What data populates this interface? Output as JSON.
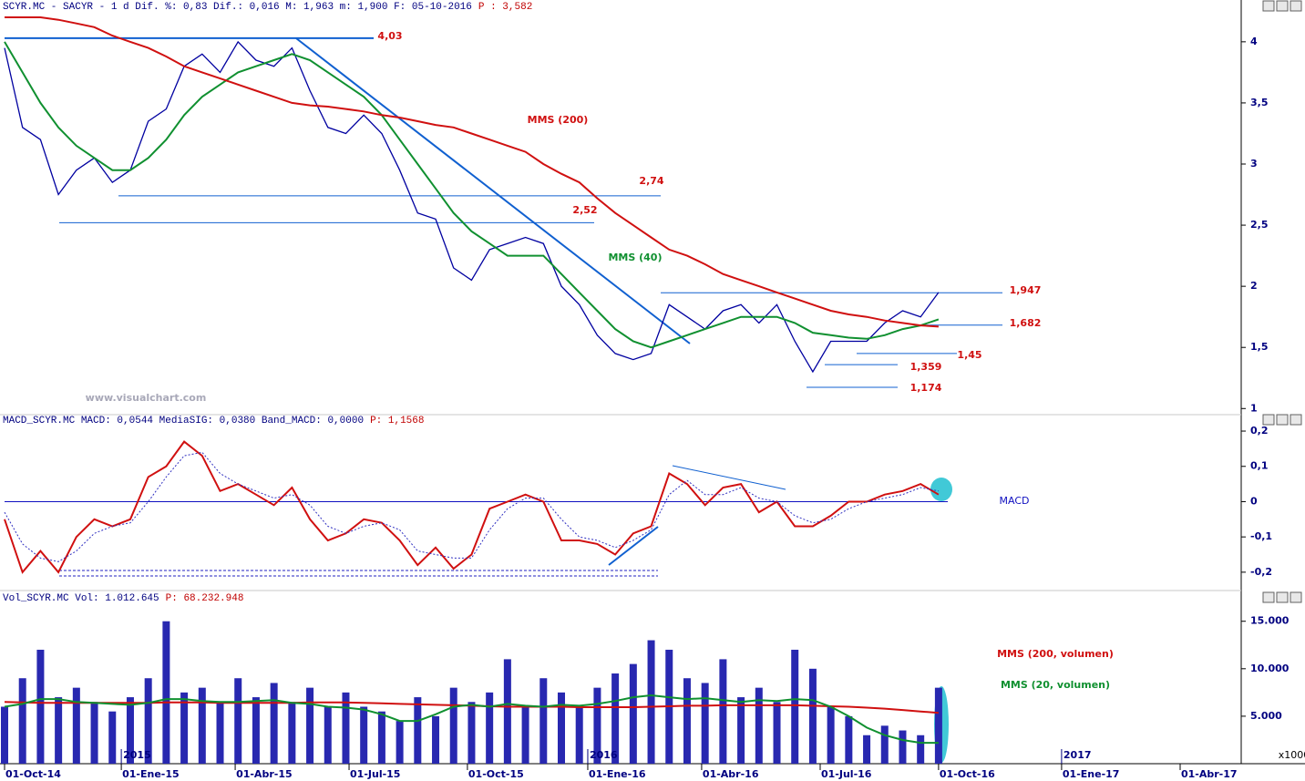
{
  "chart_data": [
    {
      "type": "line",
      "header": "SCYR.MC - SACYR -  1 d Dif. %: 0,83 Dif.: 0,016 M: 1,963 m: 1,900 F: 05-10-2016",
      "header_value": "P : 3,582",
      "watermark": "www.visualchart.com",
      "annotations": [
        "MMS (200)",
        "MMS (40)"
      ],
      "ylim": [
        0.95,
        4.23
      ],
      "yticks": [
        1,
        {
          "value": 1.5,
          "label": "1,5"
        },
        2,
        {
          "value": 2.5,
          "label": "2,5"
        },
        3,
        {
          "value": 3.5,
          "label": "3,5"
        },
        4
      ],
      "levels": [
        {
          "value": 4.03,
          "label": "4,03"
        },
        {
          "value": 2.74,
          "label": "2,74"
        },
        {
          "value": 2.52,
          "label": "2,52"
        },
        {
          "value": 1.947,
          "label": "1,947"
        },
        {
          "value": 1.682,
          "label": "1,682"
        },
        {
          "value": 1.45,
          "label": "1,45"
        },
        {
          "value": 1.359,
          "label": "1,359"
        },
        {
          "value": 1.174,
          "label": "1,174"
        }
      ],
      "series": [
        {
          "name": "SCYR.MC",
          "color": "#0000a0",
          "values": [
            3.95,
            3.3,
            3.2,
            2.75,
            2.95,
            3.05,
            2.85,
            2.95,
            3.35,
            3.45,
            3.8,
            3.9,
            3.75,
            4.0,
            3.85,
            3.8,
            3.95,
            3.6,
            3.3,
            3.25,
            3.4,
            3.25,
            2.95,
            2.6,
            2.55,
            2.15,
            2.05,
            2.3,
            2.35,
            2.4,
            2.35,
            2.0,
            1.85,
            1.6,
            1.45,
            1.4,
            1.45,
            1.85,
            1.75,
            1.65,
            1.8,
            1.85,
            1.7,
            1.85,
            1.55,
            1.3,
            1.55,
            1.55,
            1.55,
            1.7,
            1.8,
            1.75,
            1.95
          ]
        },
        {
          "name": "MMS (40)",
          "color": "#109030",
          "values": [
            4.0,
            3.75,
            3.5,
            3.3,
            3.15,
            3.05,
            2.95,
            2.95,
            3.05,
            3.2,
            3.4,
            3.55,
            3.65,
            3.75,
            3.8,
            3.85,
            3.9,
            3.85,
            3.75,
            3.65,
            3.55,
            3.4,
            3.2,
            3.0,
            2.8,
            2.6,
            2.45,
            2.35,
            2.25,
            2.25,
            2.25,
            2.1,
            1.95,
            1.8,
            1.65,
            1.55,
            1.5,
            1.55,
            1.6,
            1.65,
            1.7,
            1.75,
            1.75,
            1.75,
            1.7,
            1.62,
            1.6,
            1.58,
            1.57,
            1.6,
            1.65,
            1.68,
            1.73
          ]
        },
        {
          "name": "MMS (200)",
          "color": "#d01010",
          "values": [
            4.2,
            4.2,
            4.2,
            4.18,
            4.15,
            4.12,
            4.05,
            4.0,
            3.95,
            3.88,
            3.8,
            3.75,
            3.7,
            3.65,
            3.6,
            3.55,
            3.5,
            3.48,
            3.47,
            3.45,
            3.43,
            3.4,
            3.38,
            3.35,
            3.32,
            3.3,
            3.25,
            3.2,
            3.15,
            3.1,
            3.0,
            2.92,
            2.85,
            2.72,
            2.6,
            2.5,
            2.4,
            2.3,
            2.25,
            2.18,
            2.1,
            2.05,
            2.0,
            1.95,
            1.9,
            1.85,
            1.8,
            1.77,
            1.75,
            1.72,
            1.7,
            1.68,
            1.67
          ]
        }
      ]
    },
    {
      "type": "line",
      "header": "MACD_SCYR.MC MACD: 0,0544 MediaSIG: 0,0380 Band_MACD: 0,0000",
      "header_value": "P: 1,1568",
      "annotations": [
        "MACD"
      ],
      "ylim": [
        -0.252,
        0.213
      ],
      "yticks": [
        {
          "value": -0.2,
          "label": "-0,2"
        },
        {
          "value": -0.1,
          "label": "-0,1"
        },
        0,
        {
          "value": 0.1,
          "label": "0,1"
        },
        {
          "value": 0.2,
          "label": "0,2"
        }
      ],
      "series": [
        {
          "name": "MACD",
          "color": "#d01010",
          "values": [
            -0.05,
            -0.2,
            -0.14,
            -0.2,
            -0.1,
            -0.05,
            -0.07,
            -0.05,
            0.07,
            0.1,
            0.17,
            0.13,
            0.03,
            0.05,
            0.02,
            -0.01,
            0.04,
            -0.05,
            -0.11,
            -0.09,
            -0.05,
            -0.06,
            -0.11,
            -0.18,
            -0.13,
            -0.19,
            -0.15,
            -0.02,
            0.0,
            0.02,
            0.0,
            -0.11,
            -0.11,
            -0.12,
            -0.15,
            -0.09,
            -0.07,
            0.08,
            0.05,
            -0.01,
            0.04,
            0.05,
            -0.03,
            0.0,
            -0.07,
            -0.07,
            -0.04,
            0.0,
            0.0,
            0.02,
            0.03,
            0.05,
            0.02
          ]
        },
        {
          "name": "MediaSIG",
          "color": "#3030c0",
          "values": [
            -0.03,
            -0.12,
            -0.16,
            -0.17,
            -0.14,
            -0.09,
            -0.07,
            -0.06,
            0.0,
            0.07,
            0.13,
            0.14,
            0.08,
            0.05,
            0.03,
            0.01,
            0.02,
            -0.01,
            -0.07,
            -0.09,
            -0.07,
            -0.06,
            -0.08,
            -0.14,
            -0.15,
            -0.16,
            -0.16,
            -0.08,
            -0.02,
            0.01,
            0.01,
            -0.05,
            -0.1,
            -0.11,
            -0.13,
            -0.11,
            -0.08,
            0.02,
            0.06,
            0.02,
            0.02,
            0.04,
            0.01,
            0.0,
            -0.04,
            -0.06,
            -0.05,
            -0.02,
            0.0,
            0.01,
            0.02,
            0.04,
            0.03
          ]
        }
      ]
    },
    {
      "type": "bar",
      "header": "Vol_SCYR.MC Vol: 1.012.645",
      "header_value": "P: 68.232.948",
      "annotations": [
        "MMS (200, volumen)",
        "MMS (20, volumen)"
      ],
      "unit_label": "x1000",
      "ylim": [
        0,
        16700
      ],
      "yticks": [
        {
          "value": 5000,
          "label": "5.000"
        },
        {
          "value": 10000,
          "label": "10.000"
        },
        {
          "value": 15000,
          "label": "15.000"
        }
      ],
      "xlim": [
        0,
        68.85
      ],
      "xticks": [
        {
          "value": 0,
          "label": "01-Oct-14"
        },
        {
          "value": 6.5,
          "label": "01-Ene-15"
        },
        {
          "value": 12.84,
          "label": "01-Abr-15"
        },
        {
          "value": 19.18,
          "label": "01-Jul-15"
        },
        {
          "value": 25.77,
          "label": "01-Oct-15"
        },
        {
          "value": 32.47,
          "label": "01-Ene-16"
        },
        {
          "value": 38.81,
          "label": "01-Abr-16"
        },
        {
          "value": 45.41,
          "label": "01-Jul-16"
        },
        {
          "value": 52.0,
          "label": "01-Oct-16"
        },
        {
          "value": 58.85,
          "label": "01-Ene-17"
        },
        {
          "value": 65.45,
          "label": "01-Abr-17"
        }
      ],
      "year_labels": [
        {
          "value": 6.5,
          "label": "2015"
        },
        {
          "value": 32.47,
          "label": "2016"
        },
        {
          "value": 58.85,
          "label": "2017"
        }
      ],
      "values": [
        6000,
        9000,
        12000,
        7000,
        8000,
        6500,
        5500,
        7000,
        9000,
        15000,
        7500,
        8000,
        6500,
        9000,
        7000,
        8500,
        6500,
        8000,
        6000,
        7500,
        6000,
        5500,
        4500,
        7000,
        5000,
        8000,
        6500,
        7500,
        11000,
        6000,
        9000,
        7500,
        6000,
        8000,
        9500,
        10500,
        13000,
        12000,
        9000,
        8500,
        11000,
        7000,
        8000,
        6500,
        12000,
        10000,
        6000,
        5000,
        3000,
        4000,
        3500,
        3000,
        8000
      ],
      "color": "#2828b0",
      "series": [
        {
          "name": "MMS (200, volumen)",
          "color": "#d01010",
          "values": [
            6500,
            6450,
            6400,
            6400,
            6400,
            6400,
            6400,
            6400,
            6400,
            6450,
            6450,
            6450,
            6400,
            6400,
            6400,
            6400,
            6400,
            6450,
            6450,
            6450,
            6400,
            6350,
            6300,
            6250,
            6200,
            6150,
            6100,
            6050,
            6000,
            6000,
            6000,
            6000,
            5950,
            5950,
            5950,
            5950,
            6000,
            6050,
            6100,
            6100,
            6150,
            6150,
            6150,
            6150,
            6150,
            6100,
            6050,
            6000,
            5900,
            5800,
            5650,
            5500,
            5350
          ]
        },
        {
          "name": "MMS (20, volumen)",
          "color": "#109030",
          "values": [
            6000,
            6300,
            6800,
            6800,
            6500,
            6400,
            6300,
            6200,
            6400,
            6800,
            6800,
            6600,
            6500,
            6500,
            6600,
            6700,
            6400,
            6300,
            6000,
            5900,
            5700,
            5200,
            4500,
            4500,
            5200,
            6000,
            6200,
            6000,
            6300,
            6100,
            6000,
            6200,
            6100,
            6300,
            6600,
            7000,
            7200,
            7000,
            6800,
            6900,
            6700,
            6500,
            6700,
            6600,
            6800,
            6700,
            6000,
            5000,
            3800,
            3000,
            2500,
            2200,
            2200
          ]
        }
      ]
    }
  ]
}
